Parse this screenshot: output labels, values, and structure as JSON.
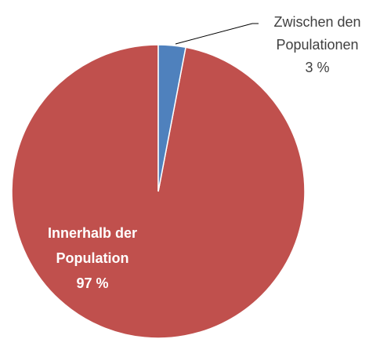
{
  "chart_data": {
    "type": "pie",
    "categories": [
      "Zwischen den Populationen",
      "Innerhalb der Population"
    ],
    "values": [
      3,
      97
    ],
    "value_labels": [
      "3 %",
      "97 %"
    ],
    "colors": [
      "#4f81bd",
      "#c0504d"
    ],
    "start_angle": 0,
    "direction": "clockwise"
  }
}
